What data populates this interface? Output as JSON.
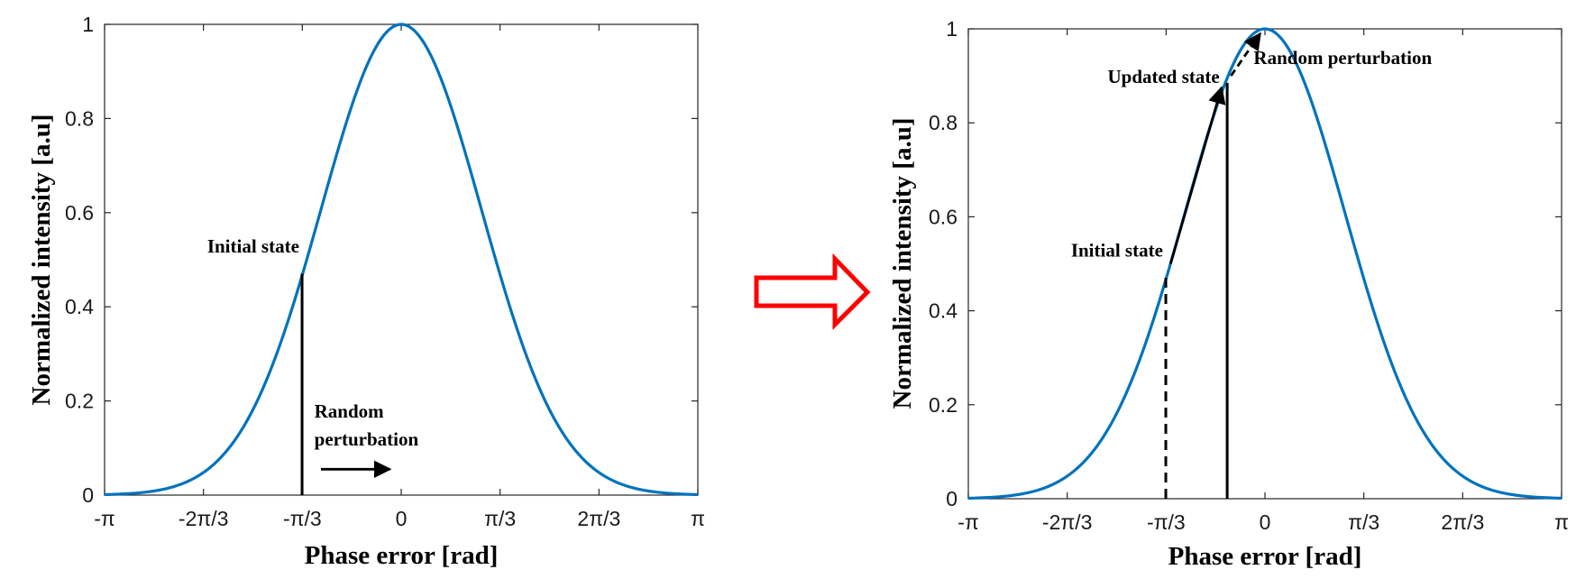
{
  "colors": {
    "curve": "#0072BD",
    "axis": "#262626",
    "annotation": "#000000",
    "arrow": "#ff0000"
  },
  "chart_data": [
    {
      "type": "line",
      "title": "",
      "xlabel": "Phase error [rad]",
      "ylabel": "Normalized intensity [a.u]",
      "xlim": [
        -3.14159,
        3.14159
      ],
      "ylim": [
        0,
        1
      ],
      "x_ticks": [
        -3.14159,
        -2.0944,
        -1.0472,
        0,
        1.0472,
        2.0944,
        3.14159
      ],
      "x_tick_labels": [
        "-π",
        "-2π/3",
        "-π/3",
        "0",
        "π/3",
        "2π/3",
        "π"
      ],
      "y_ticks": [
        0,
        0.2,
        0.4,
        0.6,
        0.8,
        1
      ],
      "y_tick_labels": [
        "0",
        "0.2",
        "0.4",
        "0.6",
        "0.8",
        "1"
      ],
      "series": [
        {
          "curve": "gaussian",
          "mu": 0,
          "sigma": 0.85,
          "peak": 1
        }
      ],
      "vlines": [
        {
          "x": -1.05,
          "y": 0.47,
          "style": "solid"
        }
      ],
      "annotations": [
        {
          "text": "Initial state",
          "x": -1.08,
          "y": 0.515,
          "anchor": "end"
        },
        {
          "text": "Random",
          "x": -0.92,
          "y": 0.165,
          "anchor": "start"
        },
        {
          "text": "perturbation",
          "x": -0.92,
          "y": 0.105,
          "anchor": "start"
        }
      ],
      "arrows": [
        {
          "from": [
            -0.85,
            0.055
          ],
          "to": [
            -0.12,
            0.055
          ],
          "style": "solid"
        }
      ]
    },
    {
      "type": "line",
      "title": "",
      "xlabel": "Phase error [rad]",
      "ylabel": "Normalized intensity [a.u]",
      "xlim": [
        -3.14159,
        3.14159
      ],
      "ylim": [
        0,
        1
      ],
      "x_ticks": [
        -3.14159,
        -2.0944,
        -1.0472,
        0,
        1.0472,
        2.0944,
        3.14159
      ],
      "x_tick_labels": [
        "-π",
        "-2π/3",
        "-π/3",
        "0",
        "π/3",
        "2π/3",
        "π"
      ],
      "y_ticks": [
        0,
        0.2,
        0.4,
        0.6,
        0.8,
        1
      ],
      "y_tick_labels": [
        "0",
        "0.2",
        "0.4",
        "0.6",
        "0.8",
        "1"
      ],
      "series": [
        {
          "curve": "gaussian",
          "mu": 0,
          "sigma": 0.85,
          "peak": 1
        }
      ],
      "vlines": [
        {
          "x": -1.05,
          "y": 0.47,
          "style": "dashed"
        },
        {
          "x": -0.4,
          "y": 0.885,
          "style": "solid"
        }
      ],
      "annotations": [
        {
          "text": "Initial state",
          "x": -1.08,
          "y": 0.515,
          "anchor": "end"
        },
        {
          "text": "Updated state",
          "x": -0.48,
          "y": 0.885,
          "anchor": "end"
        },
        {
          "text": "Random perturbation",
          "x": -0.12,
          "y": 0.925,
          "anchor": "start"
        }
      ],
      "arrows": [
        {
          "from": [
            -1.0,
            0.5
          ],
          "to": [
            -0.46,
            0.875
          ],
          "style": "solid"
        },
        {
          "from": [
            -0.36,
            0.9
          ],
          "to": [
            -0.05,
            0.99
          ],
          "style": "dashed"
        }
      ]
    }
  ]
}
